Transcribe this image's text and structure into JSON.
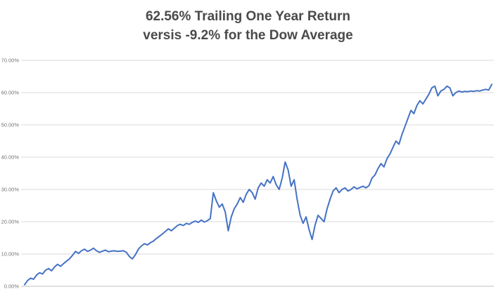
{
  "chart": {
    "title_line1": "62.56% Trailing One Year Return",
    "title_line2": "versis -9.2% for the Dow Average"
  },
  "chart_data": {
    "type": "line",
    "title": "62.56% Trailing One Year Return versis -9.2% for the Dow Average",
    "xlabel": "",
    "ylabel": "",
    "ylim": [
      0,
      70
    ],
    "ytick_labels": [
      "0.00%",
      "10.00%",
      "20.00%",
      "30.00%",
      "40.00%",
      "50.00%",
      "60.00%",
      "70.00%"
    ],
    "grid": true,
    "legend": "none",
    "line_color": "#4472C4",
    "background_color": "#FFFFFF",
    "series": [
      {
        "name": "Trailing One Year Return (%)",
        "values": [
          0.5,
          1.8,
          2.5,
          2.2,
          3.5,
          4.2,
          3.8,
          5.0,
          5.5,
          4.8,
          6.0,
          6.8,
          6.2,
          7.0,
          7.8,
          8.5,
          9.6,
          10.8,
          10.2,
          11.0,
          11.5,
          10.8,
          11.2,
          11.8,
          11.0,
          10.5,
          10.9,
          11.2,
          10.7,
          10.9,
          11.0,
          10.8,
          10.9,
          11.0,
          10.5,
          9.2,
          8.5,
          9.8,
          11.5,
          12.5,
          13.2,
          12.8,
          13.5,
          14.0,
          14.8,
          15.5,
          16.2,
          17.0,
          17.8,
          17.2,
          18.0,
          18.8,
          19.2,
          18.8,
          19.5,
          19.2,
          19.8,
          20.2,
          19.8,
          20.5,
          19.9,
          20.3,
          21.0,
          29.0,
          26.5,
          24.5,
          25.5,
          23.0,
          17.2,
          21.5,
          24.0,
          25.5,
          27.5,
          26.0,
          28.5,
          30.0,
          29.0,
          27.0,
          30.5,
          32.0,
          31.0,
          33.0,
          32.0,
          34.0,
          31.5,
          30.0,
          33.5,
          38.5,
          36.0,
          31.0,
          33.0,
          27.0,
          22.0,
          19.5,
          21.5,
          17.5,
          14.5,
          19.0,
          22.0,
          21.0,
          20.0,
          24.0,
          27.0,
          29.5,
          30.5,
          29.0,
          30.0,
          30.5,
          29.5,
          30.0,
          30.8,
          30.2,
          30.6,
          31.0,
          30.5,
          31.2,
          33.5,
          34.5,
          36.5,
          38.0,
          37.0,
          39.5,
          41.0,
          43.0,
          45.0,
          44.0,
          47.0,
          49.5,
          52.0,
          54.5,
          53.5,
          56.0,
          57.5,
          56.5,
          58.0,
          59.5,
          61.5,
          62.0,
          59.0,
          60.5,
          61.0,
          62.0,
          61.5,
          59.0,
          60.0,
          60.5,
          60.2,
          60.4,
          60.3,
          60.5,
          60.4,
          60.6,
          60.5,
          60.8,
          61.0,
          60.8,
          62.56
        ]
      }
    ],
    "annotations": {
      "final_value": "62.56%",
      "comparison_value": "-9.2% (Dow Average)"
    }
  }
}
